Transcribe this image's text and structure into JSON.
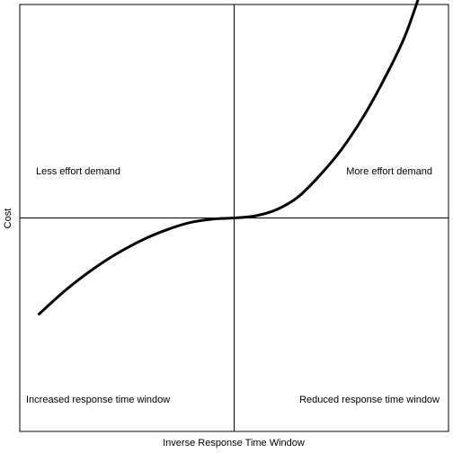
{
  "chart_data": {
    "type": "line",
    "title": "",
    "xlabel": "Inverse Response Time Window",
    "ylabel": "Cost",
    "xlim": [
      -1,
      1
    ],
    "ylim": [
      -1,
      1
    ],
    "grid": false,
    "legend": "none",
    "series": [
      {
        "color": "#000000",
        "x": [
          -0.91,
          -0.8,
          -0.7,
          -0.6,
          -0.5,
          -0.4,
          -0.3,
          -0.2,
          -0.1,
          0.0,
          0.1,
          0.2,
          0.3,
          0.4,
          0.5,
          0.6,
          0.7,
          0.8,
          0.9
        ],
        "y": [
          -0.45,
          -0.35,
          -0.27,
          -0.2,
          -0.14,
          -0.09,
          -0.05,
          -0.02,
          -0.005,
          0.0,
          0.01,
          0.04,
          0.1,
          0.2,
          0.32,
          0.47,
          0.65,
          0.86,
          1.15
        ]
      }
    ],
    "annotations": [
      {
        "text": "Less effort demand",
        "quadrant": "top-left"
      },
      {
        "text": "More effort demand",
        "quadrant": "top-right"
      },
      {
        "text": "Increased response time window",
        "quadrant": "bottom-left"
      },
      {
        "text": "Reduced response time window",
        "quadrant": "bottom-right"
      }
    ]
  }
}
